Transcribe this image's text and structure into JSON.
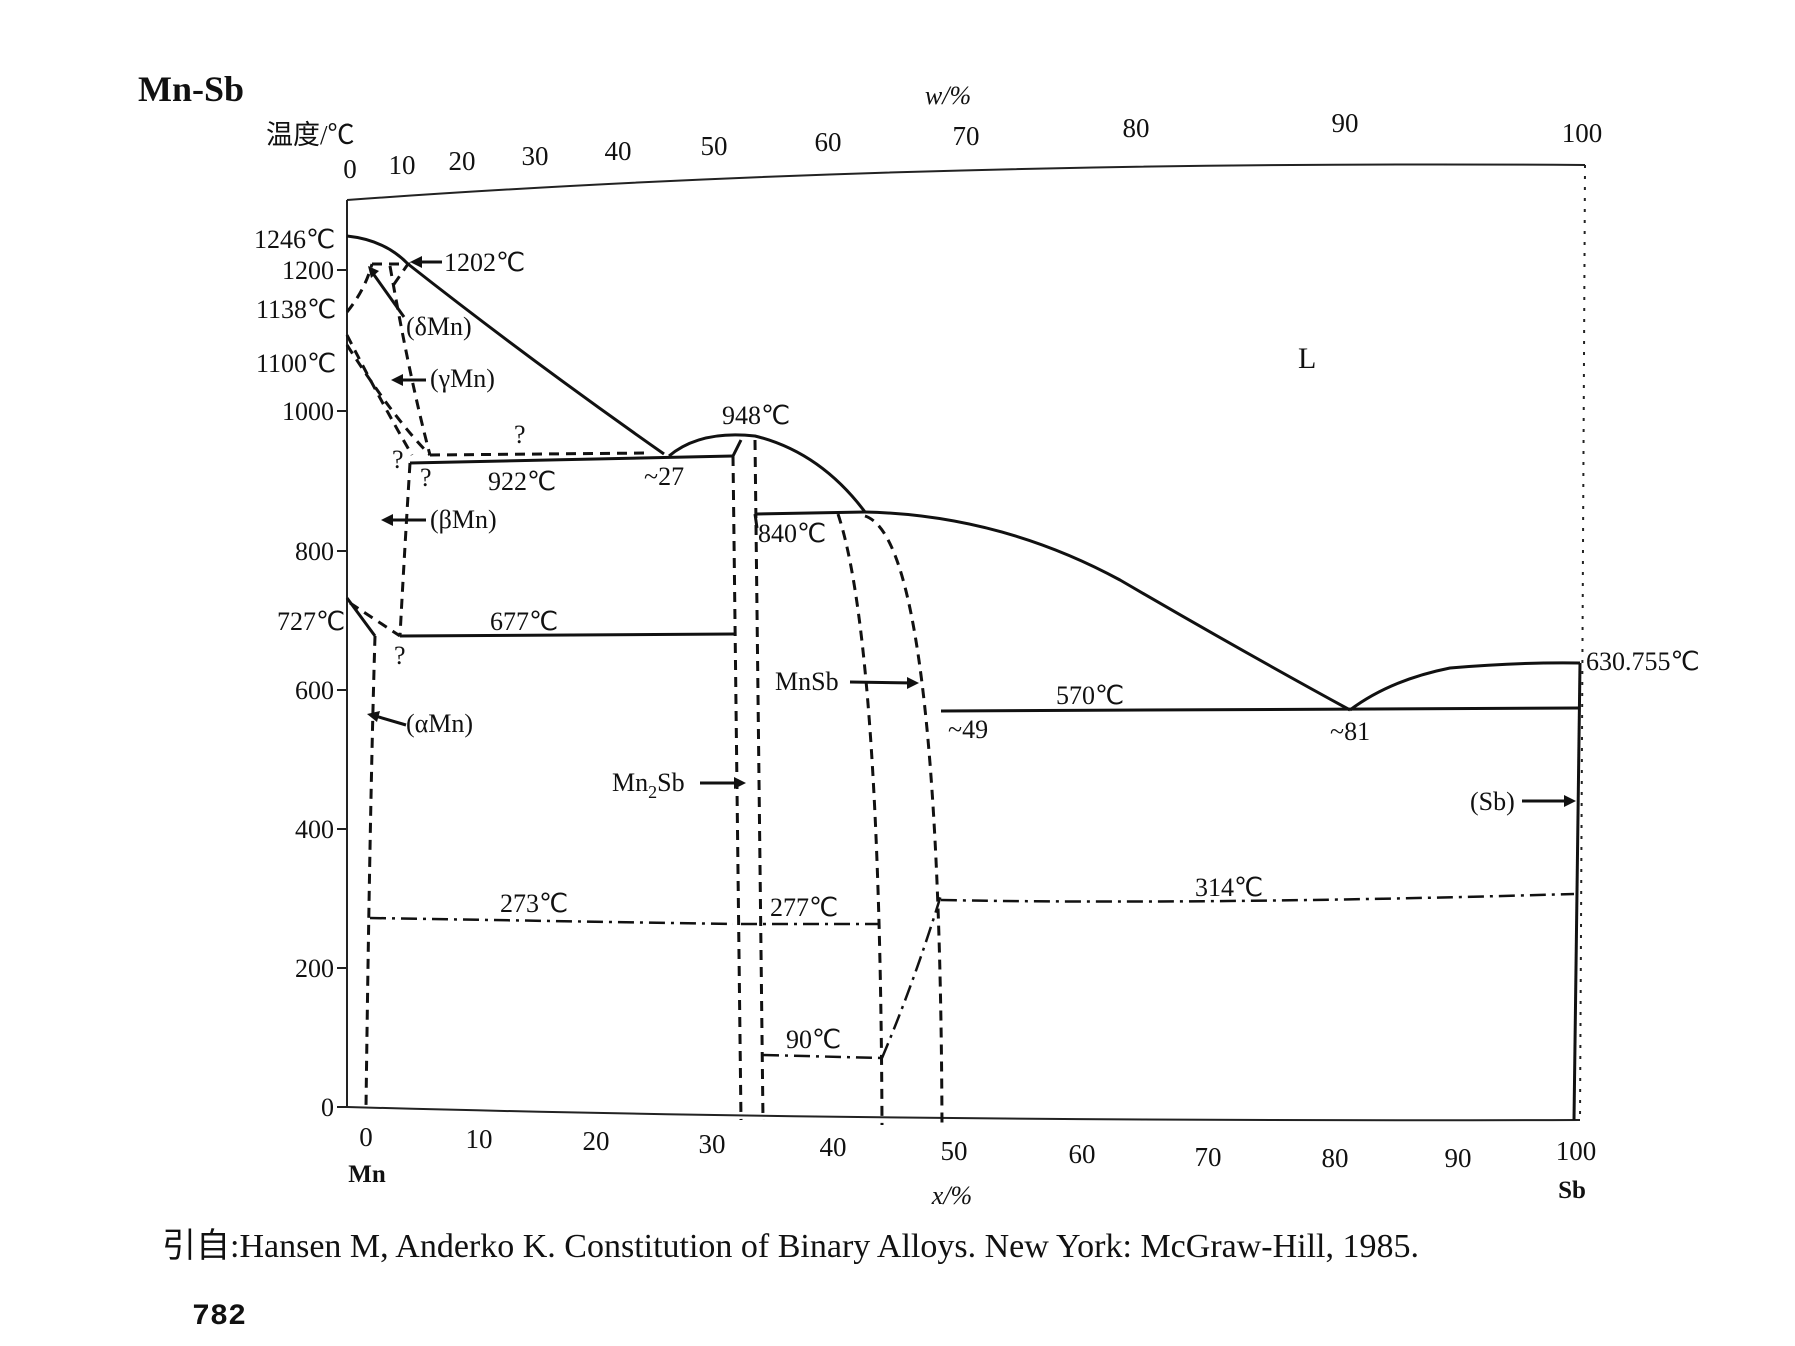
{
  "title": "Mn-Sb",
  "axes": {
    "y_label": "温度/℃",
    "y_ticks": [
      "0",
      "200",
      "400",
      "600",
      "800",
      "1000",
      "1200"
    ],
    "x_bottom_label": "x/%",
    "x_bottom_ticks": [
      "0",
      "10",
      "20",
      "30",
      "40",
      "50",
      "60",
      "70",
      "80",
      "90",
      "100"
    ],
    "x_top_label": "w/%",
    "x_top_ticks": [
      "0",
      "10",
      "20",
      "30",
      "40",
      "50",
      "60",
      "70",
      "80",
      "90",
      "100"
    ],
    "left_element": "Mn",
    "right_element": "Sb"
  },
  "temperature_labels": {
    "t1246": "1246℃",
    "t1202": "1202℃",
    "t1138": "1138℃",
    "t1100": "1100℃",
    "t948": "948℃",
    "t922": "922℃",
    "t840": "840℃",
    "t727": "727℃",
    "t677": "677℃",
    "t630": "630.755℃",
    "t570": "570℃",
    "t273": "273℃",
    "t277": "277℃",
    "t314": "314℃",
    "t90": "90℃"
  },
  "composition_labels": {
    "c27": "~27",
    "c49": "~49",
    "c81": "~81"
  },
  "phase_labels": {
    "liquid": "L",
    "delta_mn": "(δMn)",
    "gamma_mn": "(γMn)",
    "beta_mn": "(βMn)",
    "alpha_mn": "(αMn)",
    "mn2sb_prefix": "Mn",
    "mn2sb_sub": "2",
    "mn2sb_suffix": "Sb",
    "mnsb": "MnSb",
    "sb": "(Sb)",
    "question": "?"
  },
  "caption": "引自:Hansen M, Anderko K. Constitution of Binary Alloys. New York: McGraw-Hill, 1985.",
  "page_number": "782"
}
